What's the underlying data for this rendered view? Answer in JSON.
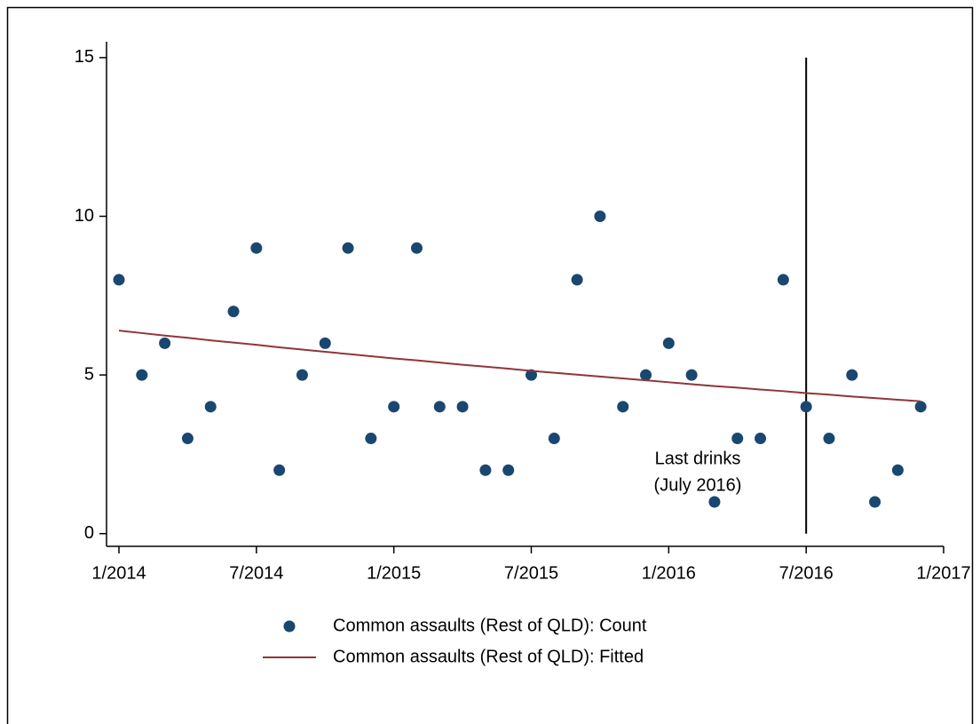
{
  "chart_data": {
    "type": "scatter",
    "x": [
      "1/2014",
      "2/2014",
      "3/2014",
      "4/2014",
      "5/2014",
      "6/2014",
      "7/2014",
      "8/2014",
      "9/2014",
      "10/2014",
      "11/2014",
      "12/2014",
      "1/2015",
      "2/2015",
      "3/2015",
      "4/2015",
      "5/2015",
      "6/2015",
      "7/2015",
      "8/2015",
      "9/2015",
      "10/2015",
      "11/2015",
      "12/2015",
      "1/2016",
      "2/2016",
      "3/2016",
      "4/2016",
      "5/2016",
      "6/2016",
      "7/2016",
      "8/2016",
      "9/2016",
      "10/2016",
      "11/2016",
      "12/2016"
    ],
    "series": [
      {
        "name": "Common assaults (Rest of QLD): Count",
        "kind": "scatter",
        "color": "#1a476f",
        "values": [
          8,
          5,
          6,
          3,
          4,
          7,
          9,
          2,
          5,
          6,
          9,
          3,
          4,
          9,
          4,
          4,
          2,
          2,
          5,
          3,
          8,
          10,
          4,
          5,
          6,
          5,
          1,
          3,
          3,
          8,
          4,
          3,
          5,
          1,
          2,
          4
        ]
      },
      {
        "name": "Common assaults (Rest of QLD): Fitted",
        "kind": "line",
        "color": "#90353b",
        "values": [
          6.4,
          6.32,
          6.24,
          6.17,
          6.09,
          6.02,
          5.95,
          5.87,
          5.8,
          5.73,
          5.66,
          5.59,
          5.52,
          5.46,
          5.39,
          5.32,
          5.26,
          5.2,
          5.13,
          5.07,
          5.01,
          4.95,
          4.89,
          4.83,
          4.77,
          4.71,
          4.65,
          4.6,
          4.54,
          4.49,
          4.43,
          4.38,
          4.32,
          4.27,
          4.22,
          4.17
        ]
      }
    ],
    "xlim": [
      "1/2014",
      "1/2017"
    ],
    "xticks": [
      "1/2014",
      "7/2014",
      "1/2015",
      "7/2015",
      "1/2016",
      "7/2016",
      "1/2017"
    ],
    "ylim": [
      -0.4,
      15.5
    ],
    "yticks": [
      0,
      5,
      10,
      15
    ],
    "vline": {
      "x": "7/2016",
      "ymin": 0,
      "ymax": 15
    },
    "annotation": [
      "Last drinks",
      "(July 2016)"
    ]
  }
}
